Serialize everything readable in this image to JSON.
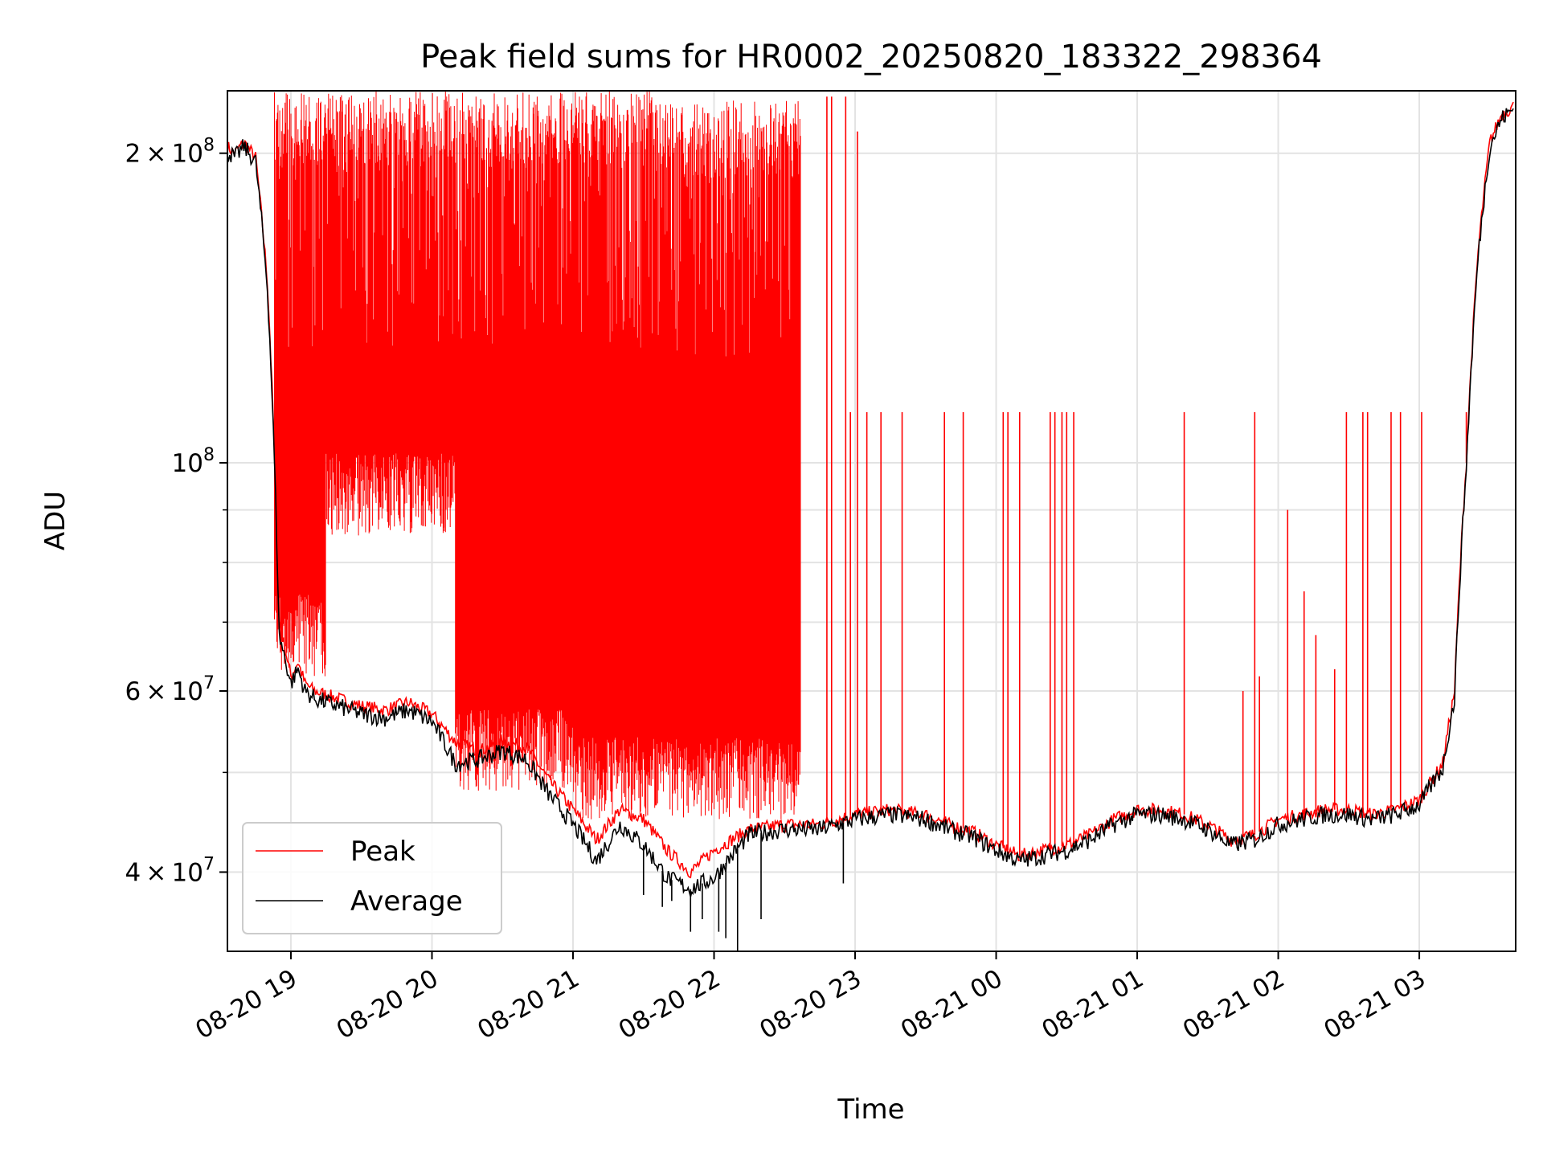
{
  "chart_data": {
    "type": "line",
    "title": "Peak field sums for HR0002_20250820_183322_298364",
    "xlabel": "Time",
    "ylabel": "ADU",
    "y_scale": "log",
    "grid": true,
    "legend_position": "lower-left",
    "xlim": [
      "2025-08-20 18:33",
      "2025-08-21 03:41"
    ],
    "ylim": [
      33500000,
      230000000
    ],
    "x_ticks": [
      {
        "value": "2025-08-20 19:00",
        "label": "08-20 19"
      },
      {
        "value": "2025-08-20 20:00",
        "label": "08-20 20"
      },
      {
        "value": "2025-08-20 21:00",
        "label": "08-20 21"
      },
      {
        "value": "2025-08-20 22:00",
        "label": "08-20 22"
      },
      {
        "value": "2025-08-20 23:00",
        "label": "08-20 23"
      },
      {
        "value": "2025-08-21 00:00",
        "label": "08-21 00"
      },
      {
        "value": "2025-08-21 01:00",
        "label": "08-21 01"
      },
      {
        "value": "2025-08-21 02:00",
        "label": "08-21 02"
      },
      {
        "value": "2025-08-21 03:00",
        "label": "08-21 03"
      }
    ],
    "y_ticks": [
      {
        "value": 40000000,
        "mantissa": "4",
        "times": "×",
        "base": "10",
        "exp": "7"
      },
      {
        "value": 60000000,
        "mantissa": "6",
        "times": "×",
        "base": "10",
        "exp": "7"
      },
      {
        "value": 100000000,
        "mantissa": "",
        "times": "",
        "base": "10",
        "exp": "8"
      },
      {
        "value": 200000000,
        "mantissa": "2",
        "times": "×",
        "base": "10",
        "exp": "8"
      }
    ],
    "y_minor_ticks": [
      50000000,
      70000000,
      80000000,
      90000000
    ],
    "series": [
      {
        "name": "Peak",
        "color": "#ff0000",
        "line_width": 1,
        "baseline": [
          [
            "2025-08-20 18:33",
            203000000
          ],
          [
            "2025-08-20 18:36",
            200000000
          ],
          [
            "2025-08-20 18:40",
            205000000
          ],
          [
            "2025-08-20 18:45",
            198000000
          ],
          [
            "2025-08-20 18:50",
            150000000
          ],
          [
            "2025-08-20 18:55",
            70000000
          ],
          [
            "2025-08-20 19:00",
            62000000
          ],
          [
            "2025-08-20 19:03",
            64000000
          ],
          [
            "2025-08-20 19:06",
            61000000
          ],
          [
            "2025-08-20 19:10",
            60000000
          ],
          [
            "2025-08-20 19:20",
            59000000
          ],
          [
            "2025-08-20 19:30",
            58000000
          ],
          [
            "2025-08-20 19:40",
            57500000
          ],
          [
            "2025-08-20 19:50",
            58500000
          ],
          [
            "2025-08-20 20:00",
            57000000
          ],
          [
            "2025-08-20 20:10",
            53500000
          ],
          [
            "2025-08-20 20:20",
            52500000
          ],
          [
            "2025-08-20 20:30",
            53500000
          ],
          [
            "2025-08-20 20:40",
            53000000
          ],
          [
            "2025-08-20 20:50",
            49000000
          ],
          [
            "2025-08-20 21:00",
            46000000
          ],
          [
            "2025-08-20 21:10",
            43000000
          ],
          [
            "2025-08-20 21:20",
            46000000
          ],
          [
            "2025-08-20 21:30",
            45000000
          ],
          [
            "2025-08-20 21:40",
            42000000
          ],
          [
            "2025-08-20 21:50",
            40000000
          ],
          [
            "2025-08-20 22:00",
            42000000
          ],
          [
            "2025-08-20 22:15",
            44000000
          ],
          [
            "2025-08-20 22:30",
            44500000
          ],
          [
            "2025-08-20 22:45",
            44500000
          ],
          [
            "2025-08-20 23:00",
            45500000
          ],
          [
            "2025-08-20 23:15",
            46000000
          ],
          [
            "2025-08-20 23:30",
            45500000
          ],
          [
            "2025-08-20 23:40",
            44500000
          ],
          [
            "2025-08-20 23:50",
            43800000
          ],
          [
            "2025-08-21 00:00",
            42500000
          ],
          [
            "2025-08-21 00:10",
            41500000
          ],
          [
            "2025-08-21 00:20",
            42000000
          ],
          [
            "2025-08-21 00:30",
            42500000
          ],
          [
            "2025-08-21 00:40",
            43500000
          ],
          [
            "2025-08-21 00:50",
            45000000
          ],
          [
            "2025-08-21 01:00",
            46000000
          ],
          [
            "2025-08-21 01:10",
            46000000
          ],
          [
            "2025-08-21 01:20",
            45500000
          ],
          [
            "2025-08-21 01:30",
            44500000
          ],
          [
            "2025-08-21 01:40",
            43000000
          ],
          [
            "2025-08-21 01:50",
            43500000
          ],
          [
            "2025-08-21 02:00",
            45000000
          ],
          [
            "2025-08-21 02:10",
            45500000
          ],
          [
            "2025-08-21 02:20",
            46000000
          ],
          [
            "2025-08-21 02:30",
            46000000
          ],
          [
            "2025-08-21 02:40",
            45500000
          ],
          [
            "2025-08-21 02:50",
            46000000
          ],
          [
            "2025-08-21 03:00",
            47000000
          ],
          [
            "2025-08-21 03:10",
            51000000
          ],
          [
            "2025-08-21 03:15",
            60000000
          ],
          [
            "2025-08-21 03:20",
            100000000
          ],
          [
            "2025-08-21 03:25",
            160000000
          ],
          [
            "2025-08-21 03:30",
            205000000
          ],
          [
            "2025-08-21 03:35",
            218000000
          ],
          [
            "2025-08-21 03:40",
            222000000
          ]
        ],
        "spike_bands": [
          {
            "from": "2025-08-20 18:53",
            "to": "2025-08-20 19:15",
            "top": 230000000,
            "floor": 62000000
          },
          {
            "from": "2025-08-20 19:15",
            "to": "2025-08-20 20:10",
            "top": 230000000,
            "floor": 85000000
          },
          {
            "from": "2025-08-20 20:10",
            "to": "2025-08-20 21:00",
            "top": 230000000,
            "floor": 48000000
          },
          {
            "from": "2025-08-20 21:00",
            "to": "2025-08-20 21:35",
            "top": 230000000,
            "floor": 45000000
          },
          {
            "from": "2025-08-20 21:35",
            "to": "2025-08-20 22:37",
            "top": 225000000,
            "floor": 45000000
          }
        ],
        "spikes": [
          [
            "2025-08-20 22:48",
            227000000
          ],
          [
            "2025-08-20 22:50",
            227000000
          ],
          [
            "2025-08-20 22:56",
            227000000
          ],
          [
            "2025-08-20 23:01",
            210000000
          ],
          [
            "2025-08-20 22:58",
            112000000
          ],
          [
            "2025-08-20 23:05",
            112000000
          ],
          [
            "2025-08-20 23:11",
            112000000
          ],
          [
            "2025-08-20 23:20",
            112000000
          ],
          [
            "2025-08-20 23:38",
            112000000
          ],
          [
            "2025-08-20 23:46",
            112000000
          ],
          [
            "2025-08-21 00:03",
            112000000
          ],
          [
            "2025-08-21 00:05",
            112000000
          ],
          [
            "2025-08-21 00:10",
            112000000
          ],
          [
            "2025-08-21 00:23",
            112000000
          ],
          [
            "2025-08-21 00:25",
            112000000
          ],
          [
            "2025-08-21 00:28",
            112000000
          ],
          [
            "2025-08-21 00:30",
            112000000
          ],
          [
            "2025-08-21 00:33",
            112000000
          ],
          [
            "2025-08-21 01:20",
            112000000
          ],
          [
            "2025-08-21 01:50",
            112000000
          ],
          [
            "2025-08-21 02:29",
            112000000
          ],
          [
            "2025-08-21 02:36",
            112000000
          ],
          [
            "2025-08-21 02:38",
            112000000
          ],
          [
            "2025-08-21 02:48",
            112000000
          ],
          [
            "2025-08-21 02:52",
            112000000
          ],
          [
            "2025-08-21 03:01",
            112000000
          ],
          [
            "2025-08-21 03:20",
            112000000
          ],
          [
            "2025-08-21 01:45",
            60000000
          ],
          [
            "2025-08-21 01:52",
            62000000
          ],
          [
            "2025-08-21 02:04",
            90000000
          ],
          [
            "2025-08-21 02:11",
            75000000
          ],
          [
            "2025-08-21 02:16",
            68000000
          ],
          [
            "2025-08-21 02:24",
            63000000
          ]
        ]
      },
      {
        "name": "Average",
        "color": "#000000",
        "line_width": 1,
        "baseline": [
          [
            "2025-08-20 18:33",
            201000000
          ],
          [
            "2025-08-20 18:36",
            198000000
          ],
          [
            "2025-08-20 18:40",
            203000000
          ],
          [
            "2025-08-20 18:45",
            196000000
          ],
          [
            "2025-08-20 18:50",
            148000000
          ],
          [
            "2025-08-20 18:55",
            68000000
          ],
          [
            "2025-08-20 19:00",
            61000000
          ],
          [
            "2025-08-20 19:03",
            63000000
          ],
          [
            "2025-08-20 19:06",
            60000000
          ],
          [
            "2025-08-20 19:10",
            59000000
          ],
          [
            "2025-08-20 19:20",
            58000000
          ],
          [
            "2025-08-20 19:30",
            57000000
          ],
          [
            "2025-08-20 19:40",
            56500000
          ],
          [
            "2025-08-20 19:50",
            57500000
          ],
          [
            "2025-08-20 20:00",
            56000000
          ],
          [
            "2025-08-20 20:10",
            51000000
          ],
          [
            "2025-08-20 20:20",
            51500000
          ],
          [
            "2025-08-20 20:30",
            52500000
          ],
          [
            "2025-08-20 20:40",
            51500000
          ],
          [
            "2025-08-20 20:50",
            47500000
          ],
          [
            "2025-08-20 21:00",
            44500000
          ],
          [
            "2025-08-20 21:10",
            41000000
          ],
          [
            "2025-08-20 21:20",
            44500000
          ],
          [
            "2025-08-20 21:30",
            42500000
          ],
          [
            "2025-08-20 21:40",
            39500000
          ],
          [
            "2025-08-20 21:50",
            38500000
          ],
          [
            "2025-08-20 22:00",
            39500000
          ],
          [
            "2025-08-20 22:15",
            43500000
          ],
          [
            "2025-08-20 22:30",
            44000000
          ],
          [
            "2025-08-20 22:45",
            44000000
          ],
          [
            "2025-08-20 23:00",
            45000000
          ],
          [
            "2025-08-20 23:15",
            45500000
          ],
          [
            "2025-08-20 23:30",
            45000000
          ],
          [
            "2025-08-20 23:40",
            44000000
          ],
          [
            "2025-08-20 23:50",
            43300000
          ],
          [
            "2025-08-21 00:00",
            42000000
          ],
          [
            "2025-08-21 00:10",
            41000000
          ],
          [
            "2025-08-21 00:20",
            41500000
          ],
          [
            "2025-08-21 00:30",
            42000000
          ],
          [
            "2025-08-21 00:40",
            43000000
          ],
          [
            "2025-08-21 00:50",
            44500000
          ],
          [
            "2025-08-21 01:00",
            45500000
          ],
          [
            "2025-08-21 01:10",
            45500000
          ],
          [
            "2025-08-21 01:20",
            45000000
          ],
          [
            "2025-08-21 01:30",
            44000000
          ],
          [
            "2025-08-21 01:40",
            42500000
          ],
          [
            "2025-08-21 01:50",
            43000000
          ],
          [
            "2025-08-21 02:00",
            44500000
          ],
          [
            "2025-08-21 02:10",
            45000000
          ],
          [
            "2025-08-21 02:20",
            45500000
          ],
          [
            "2025-08-21 02:30",
            45500000
          ],
          [
            "2025-08-21 02:40",
            45000000
          ],
          [
            "2025-08-21 02:50",
            45500000
          ],
          [
            "2025-08-21 03:00",
            46500000
          ],
          [
            "2025-08-21 03:10",
            50500000
          ],
          [
            "2025-08-21 03:15",
            59000000
          ],
          [
            "2025-08-21 03:20",
            99000000
          ],
          [
            "2025-08-21 03:25",
            158000000
          ],
          [
            "2025-08-21 03:30",
            203000000
          ],
          [
            "2025-08-21 03:35",
            216000000
          ],
          [
            "2025-08-21 03:40",
            221000000
          ]
        ],
        "dips": [
          [
            "2025-08-20 21:30",
            38000000
          ],
          [
            "2025-08-20 21:38",
            37000000
          ],
          [
            "2025-08-20 21:42",
            37500000
          ],
          [
            "2025-08-20 21:50",
            35000000
          ],
          [
            "2025-08-20 21:55",
            36000000
          ],
          [
            "2025-08-20 22:02",
            35000000
          ],
          [
            "2025-08-20 22:05",
            34500000
          ],
          [
            "2025-08-20 22:10",
            33500000
          ],
          [
            "2025-08-20 22:20",
            36000000
          ],
          [
            "2025-08-20 22:55",
            39000000
          ]
        ]
      }
    ]
  }
}
